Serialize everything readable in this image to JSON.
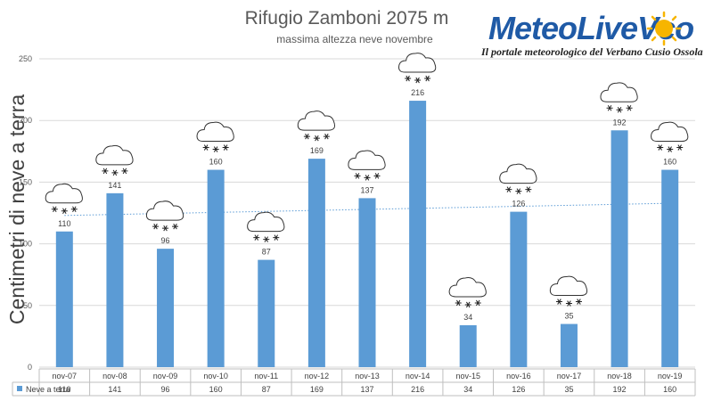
{
  "logo": {
    "name": "MeteoLiveVco",
    "tagline": "Il portale meteorologico del Verbano Cusio Ossola"
  },
  "chart_data": {
    "type": "bar",
    "title": "Rifugio Zamboni 2075 m",
    "subtitle": "massima altezza neve novembre",
    "ylabel": "Centimetri di neve a terra",
    "xlabel": "",
    "ylim": [
      0,
      250
    ],
    "yticks": [
      "0",
      "50",
      "100",
      "150",
      "200",
      "250"
    ],
    "grid": true,
    "categories": [
      "nov-07",
      "nov-08",
      "nov-09",
      "nov-10",
      "nov-11",
      "nov-12",
      "nov-13",
      "nov-14",
      "nov-15",
      "nov-16",
      "nov-17",
      "nov-18",
      "nov-19"
    ],
    "series": [
      {
        "name": "Neve a terra",
        "values": [
          110,
          141,
          96,
          160,
          87,
          169,
          137,
          216,
          34,
          126,
          35,
          192,
          160
        ],
        "color": "#5b9bd5"
      }
    ],
    "trendline": {
      "type": "linear",
      "style": "dotted",
      "color": "#5b9bd5"
    },
    "data_labels": true,
    "data_table": true,
    "marker_icon": "snow-cloud-icon"
  }
}
